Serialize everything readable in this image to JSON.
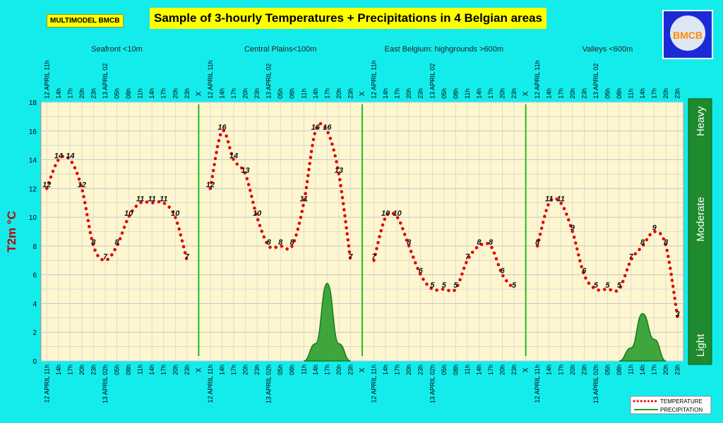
{
  "header": {
    "tag": "MULTIMODEL BMCB",
    "title": "Sample of 3-hourly Temperatures + Precipitations in 4 Belgian areas",
    "logo_text": "BMCB"
  },
  "colors": {
    "background": "#14ecec",
    "plot_area": "#fdf6cf",
    "temperature": "#e00000",
    "precipitation": "#2a9d2a",
    "right_bar": "#1f8a2e",
    "separator": "#22bb22"
  },
  "chart_data": {
    "type": "line",
    "ylabel": "T2m °C",
    "ylim": [
      0,
      18
    ],
    "yticks": [
      0,
      2,
      4,
      6,
      8,
      10,
      12,
      14,
      16,
      18
    ],
    "grid": true,
    "legend_position": "bottom-right",
    "right_scale_labels": [
      "Heavy",
      "Moderate",
      "Light"
    ],
    "separator_label": "X",
    "x_ticks": [
      "12 APRIL 11h",
      "14h",
      "17h",
      "20h",
      "23h",
      "13 APRIL 02h",
      "05h",
      "08h",
      "11h",
      "14h",
      "17h",
      "20h",
      "23h"
    ],
    "top_x_ticks": [
      "12 APRIL 11h",
      "14h",
      "17h",
      "20h",
      "23h",
      "13 APRIL 02",
      "05h",
      "08h",
      "11h",
      "14h",
      "17h",
      "20h",
      "23h"
    ],
    "areas": [
      {
        "name": "Seafront <10m",
        "temperature": [
          12,
          14,
          14,
          12,
          8,
          7,
          8,
          10,
          11,
          11,
          11,
          10,
          7
        ],
        "precipitation": [
          0,
          0,
          0,
          0,
          0,
          0,
          0,
          0,
          0,
          0,
          0,
          0,
          0
        ]
      },
      {
        "name": "Central Plains<100m",
        "temperature": [
          12,
          16,
          14,
          13,
          10,
          8,
          8,
          8,
          11,
          16,
          16,
          13,
          7
        ],
        "precipitation": [
          0,
          0,
          0,
          0,
          0,
          0,
          0,
          0,
          0,
          0.4,
          1.8,
          0.4,
          0
        ]
      },
      {
        "name": "East Belgium:     highgrounds >600m",
        "temperature": [
          7,
          10,
          10,
          8,
          6,
          5,
          5,
          5,
          7,
          8,
          8,
          6,
          5
        ],
        "precipitation": [
          0,
          0,
          0,
          0,
          0,
          0,
          0,
          0,
          0,
          0,
          0,
          0,
          0
        ]
      },
      {
        "name": "Valleys <600m",
        "temperature": [
          8,
          11,
          11,
          9,
          6,
          5,
          5,
          5,
          7,
          8,
          9,
          8,
          3
        ],
        "precipitation": [
          0,
          0,
          0,
          0,
          0,
          0,
          0,
          0,
          0.3,
          1.1,
          0.5,
          0,
          0
        ]
      }
    ],
    "legend": [
      {
        "name": "TEMPERATURE",
        "style": "dotted-red"
      },
      {
        "name": "PRECIPITATION",
        "style": "solid-green"
      }
    ]
  }
}
